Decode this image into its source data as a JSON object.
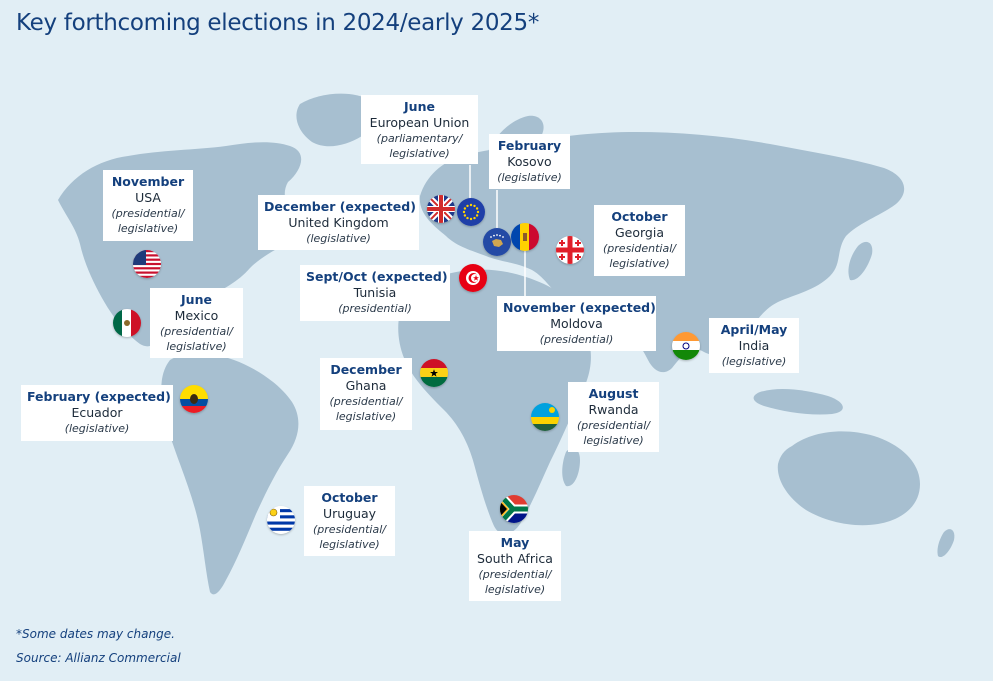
{
  "title": "Key forthcoming elections in 2024/early 2025*",
  "colors": {
    "background": "#e1eef5",
    "land": "#a7bfd0",
    "accent": "#14407d",
    "box": "#ffffff",
    "leader": "#ffffff"
  },
  "elections": [
    {
      "id": "eu",
      "when": "June",
      "country": "European Union",
      "type": [
        "(parliamentary/",
        "legislative)"
      ],
      "flag": "flag-eu-icon"
    },
    {
      "id": "kosovo",
      "when": "February",
      "country": "Kosovo",
      "type": [
        "(legislative)"
      ],
      "flag": "flag-kosovo-icon"
    },
    {
      "id": "usa",
      "when": "November",
      "country": "USA",
      "type": [
        "(presidential/",
        "legislative)"
      ],
      "flag": "flag-usa-icon"
    },
    {
      "id": "uk",
      "when": "December (expected)",
      "country": "United Kingdom",
      "type": [
        "(legislative)"
      ],
      "flag": "flag-uk-icon"
    },
    {
      "id": "georgia",
      "when": "October",
      "country": "Georgia",
      "type": [
        "(presidential/",
        "legislative)"
      ],
      "flag": "flag-georgia-icon"
    },
    {
      "id": "tunisia",
      "when": "Sept/Oct (expected)",
      "country": "Tunisia",
      "type": [
        "(presidential)"
      ],
      "flag": "flag-tunisia-icon"
    },
    {
      "id": "moldova",
      "when": "November (expected)",
      "country": "Moldova",
      "type": [
        "(presidential)"
      ],
      "flag": "flag-moldova-icon"
    },
    {
      "id": "mexico",
      "when": "June",
      "country": "Mexico",
      "type": [
        "(presidential/",
        "legislative)"
      ],
      "flag": "flag-mexico-icon"
    },
    {
      "id": "india",
      "when": "April/May",
      "country": "India",
      "type": [
        "(legislative)"
      ],
      "flag": "flag-india-icon"
    },
    {
      "id": "ghana",
      "when": "December",
      "country": "Ghana",
      "type": [
        "(presidential/",
        "legislative)"
      ],
      "flag": "flag-ghana-icon"
    },
    {
      "id": "ecuador",
      "when": "February (expected)",
      "country": "Ecuador",
      "type": [
        "(legislative)"
      ],
      "flag": "flag-ecuador-icon"
    },
    {
      "id": "rwanda",
      "when": "August",
      "country": "Rwanda",
      "type": [
        "(presidential/",
        "legislative)"
      ],
      "flag": "flag-rwanda-icon"
    },
    {
      "id": "uruguay",
      "when": "October",
      "country": "Uruguay",
      "type": [
        "(presidential/",
        "legislative)"
      ],
      "flag": "flag-uruguay-icon"
    },
    {
      "id": "southafrica",
      "when": "May",
      "country": "South Africa",
      "type": [
        "(presidential/",
        "legislative)"
      ],
      "flag": "flag-south-africa-icon"
    }
  ],
  "footnote": "*Some dates may change.",
  "source": "Source: Allianz Commercial"
}
